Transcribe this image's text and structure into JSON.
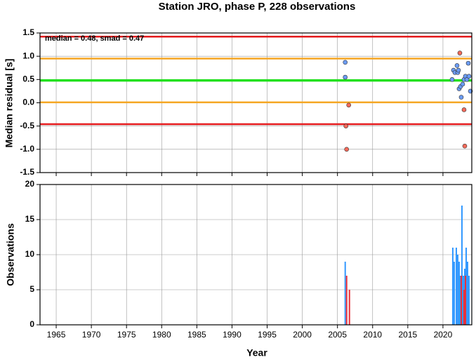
{
  "chart_data": [
    {
      "type": "scatter",
      "title": "Station JRO, phase P, 228 observations",
      "ylabel": "Median residual [s]",
      "annotation": "median = 0.48, smad = 0.47",
      "xlim": [
        1962.7,
        2024.1
      ],
      "ylim": [
        -1.5,
        1.5
      ],
      "yticks": [
        -1.5,
        {
          "value": -1.0,
          "label": "-1.0"
        },
        -0.5,
        {
          "value": 0.0,
          "label": "0.0"
        },
        0.5,
        {
          "value": 1.0,
          "label": "1.0"
        },
        1.5
      ],
      "grid": true,
      "reference_lines": [
        {
          "value": 1.42,
          "color": "#e41a1c"
        },
        {
          "value": 0.95,
          "color": "#f5a623"
        },
        {
          "value": 0.48,
          "color": "#22e01e"
        },
        {
          "value": 0.01,
          "color": "#f5a623"
        },
        {
          "value": -0.46,
          "color": "#e41a1c"
        }
      ],
      "series": [
        {
          "color": "#6b9cf5",
          "x": [
            2006.1,
            2006.1,
            2021.3,
            2021.5,
            2021.7,
            2022.0,
            2022.1,
            2022.2,
            2022.3,
            2022.5,
            2022.6,
            2022.8,
            2023.0,
            2023.2,
            2023.4,
            2023.6,
            2023.7,
            2023.9
          ],
          "values": [
            0.87,
            0.55,
            0.5,
            0.7,
            0.65,
            0.8,
            0.65,
            0.7,
            0.3,
            0.35,
            0.12,
            0.4,
            0.5,
            0.57,
            0.5,
            0.85,
            0.57,
            0.25
          ]
        },
        {
          "color": "#f56a5a",
          "x": [
            2006.6,
            2006.2,
            2006.3,
            2022.4,
            2023.0,
            2023.1
          ],
          "values": [
            -0.05,
            -0.5,
            -1.0,
            1.07,
            -0.15,
            -0.93
          ]
        }
      ]
    },
    {
      "type": "bar",
      "ylabel": "Observations",
      "xlabel": "Year",
      "xlim": [
        1962.7,
        2024.1
      ],
      "ylim": [
        0,
        20
      ],
      "yticks": [
        0,
        5,
        10,
        15,
        20
      ],
      "xticks": [
        1965,
        1970,
        1975,
        1980,
        1985,
        1990,
        1995,
        2000,
        2005,
        2010,
        2015,
        2020
      ],
      "grid": true,
      "series": [
        {
          "color": "#3399ff",
          "x": [
            2006.1,
            2021.4,
            2021.6,
            2021.9,
            2022.1,
            2022.3,
            2022.5,
            2022.7,
            2022.9,
            2023.1,
            2023.3,
            2023.5,
            2023.7
          ],
          "values": [
            9,
            11,
            9,
            11,
            10,
            9,
            7,
            17,
            7,
            8,
            11,
            9,
            7
          ]
        },
        {
          "color": "#e8303a",
          "x": [
            2006.3,
            2006.7,
            2022.6,
            2023.0,
            2023.2
          ],
          "values": [
            7,
            5,
            7,
            5,
            7
          ]
        }
      ]
    }
  ]
}
